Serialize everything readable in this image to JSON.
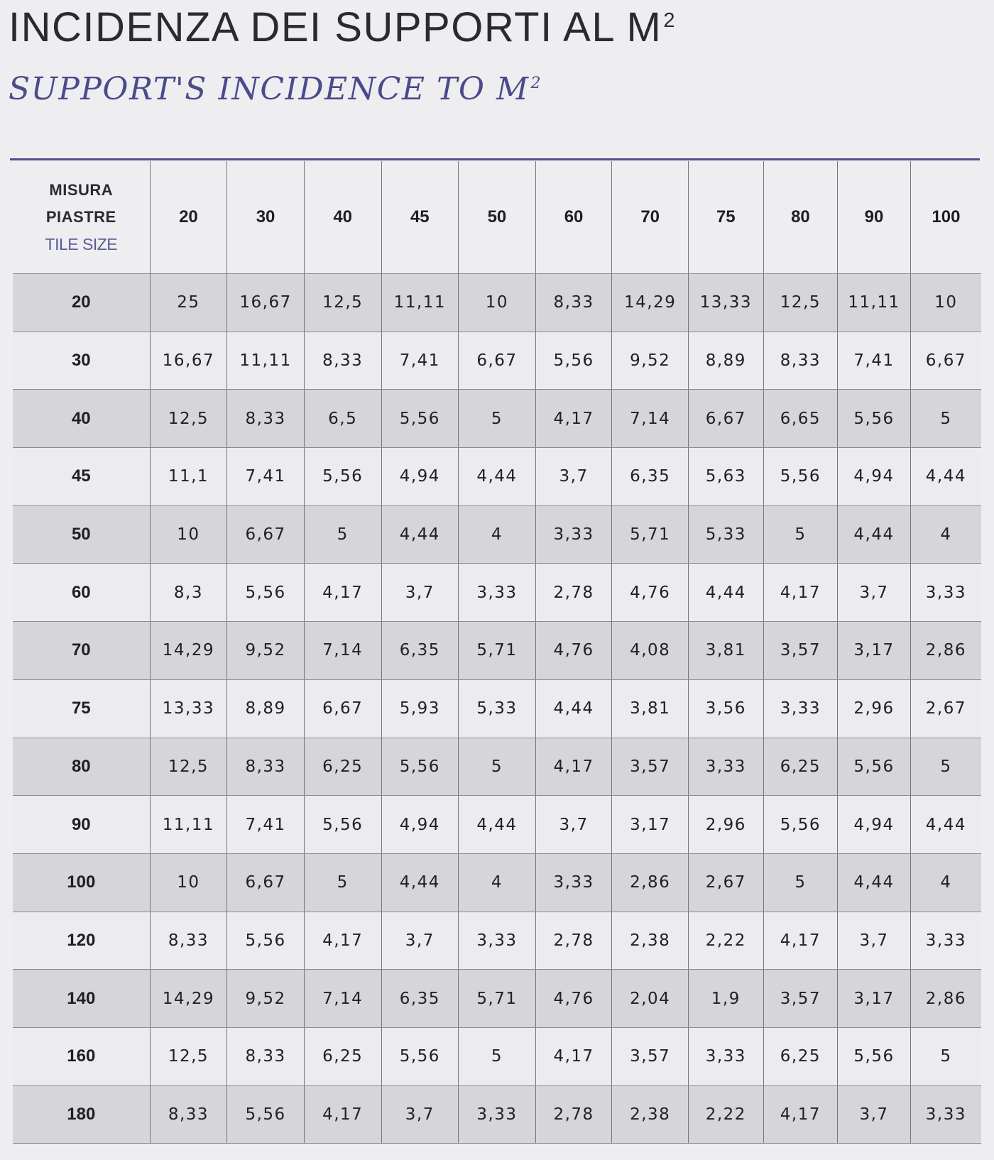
{
  "title": "INCIDENZA DEI SUPPORTI AL M",
  "title_sup": "2",
  "subtitle": "SUPPORT'S INCIDENCE TO M",
  "subtitle_sup": "2",
  "table": {
    "corner": {
      "line1": "MISURA",
      "line2": "PIASTRE",
      "line3": "TILE SIZE"
    },
    "columns": [
      "20",
      "30",
      "40",
      "45",
      "50",
      "60",
      "70",
      "75",
      "80",
      "90",
      "100"
    ],
    "rows": [
      {
        "size": "20",
        "values": [
          "25",
          "16,67",
          "12,5",
          "11,11",
          "10",
          "8,33",
          "14,29",
          "13,33",
          "12,5",
          "11,11",
          "10"
        ]
      },
      {
        "size": "30",
        "values": [
          "16,67",
          "11,11",
          "8,33",
          "7,41",
          "6,67",
          "5,56",
          "9,52",
          "8,89",
          "8,33",
          "7,41",
          "6,67"
        ]
      },
      {
        "size": "40",
        "values": [
          "12,5",
          "8,33",
          "6,5",
          "5,56",
          "5",
          "4,17",
          "7,14",
          "6,67",
          "6,65",
          "5,56",
          "5"
        ]
      },
      {
        "size": "45",
        "values": [
          "11,1",
          "7,41",
          "5,56",
          "4,94",
          "4,44",
          "3,7",
          "6,35",
          "5,63",
          "5,56",
          "4,94",
          "4,44"
        ]
      },
      {
        "size": "50",
        "values": [
          "10",
          "6,67",
          "5",
          "4,44",
          "4",
          "3,33",
          "5,71",
          "5,33",
          "5",
          "4,44",
          "4"
        ]
      },
      {
        "size": "60",
        "values": [
          "8,3",
          "5,56",
          "4,17",
          "3,7",
          "3,33",
          "2,78",
          "4,76",
          "4,44",
          "4,17",
          "3,7",
          "3,33"
        ]
      },
      {
        "size": "70",
        "values": [
          "14,29",
          "9,52",
          "7,14",
          "6,35",
          "5,71",
          "4,76",
          "4,08",
          "3,81",
          "3,57",
          "3,17",
          "2,86"
        ]
      },
      {
        "size": "75",
        "values": [
          "13,33",
          "8,89",
          "6,67",
          "5,93",
          "5,33",
          "4,44",
          "3,81",
          "3,56",
          "3,33",
          "2,96",
          "2,67"
        ]
      },
      {
        "size": "80",
        "values": [
          "12,5",
          "8,33",
          "6,25",
          "5,56",
          "5",
          "4,17",
          "3,57",
          "3,33",
          "6,25",
          "5,56",
          "5"
        ]
      },
      {
        "size": "90",
        "values": [
          "11,11",
          "7,41",
          "5,56",
          "4,94",
          "4,44",
          "3,7",
          "3,17",
          "2,96",
          "5,56",
          "4,94",
          "4,44"
        ]
      },
      {
        "size": "100",
        "values": [
          "10",
          "6,67",
          "5",
          "4,44",
          "4",
          "3,33",
          "2,86",
          "2,67",
          "5",
          "4,44",
          "4"
        ]
      },
      {
        "size": "120",
        "values": [
          "8,33",
          "5,56",
          "4,17",
          "3,7",
          "3,33",
          "2,78",
          "2,38",
          "2,22",
          "4,17",
          "3,7",
          "3,33"
        ]
      },
      {
        "size": "140",
        "values": [
          "14,29",
          "9,52",
          "7,14",
          "6,35",
          "5,71",
          "4,76",
          "2,04",
          "1,9",
          "3,57",
          "3,17",
          "2,86"
        ]
      },
      {
        "size": "160",
        "values": [
          "12,5",
          "8,33",
          "6,25",
          "5,56",
          "5",
          "4,17",
          "3,57",
          "3,33",
          "6,25",
          "5,56",
          "5"
        ]
      },
      {
        "size": "180",
        "values": [
          "8,33",
          "5,56",
          "4,17",
          "3,7",
          "3,33",
          "2,78",
          "2,38",
          "2,22",
          "4,17",
          "3,7",
          "3,33"
        ]
      }
    ]
  },
  "colors": {
    "accent": "#4f4f8a",
    "subtitle": "#4a4a8c",
    "row_shade": "#d6d6da",
    "row_plain": "#ececee"
  }
}
